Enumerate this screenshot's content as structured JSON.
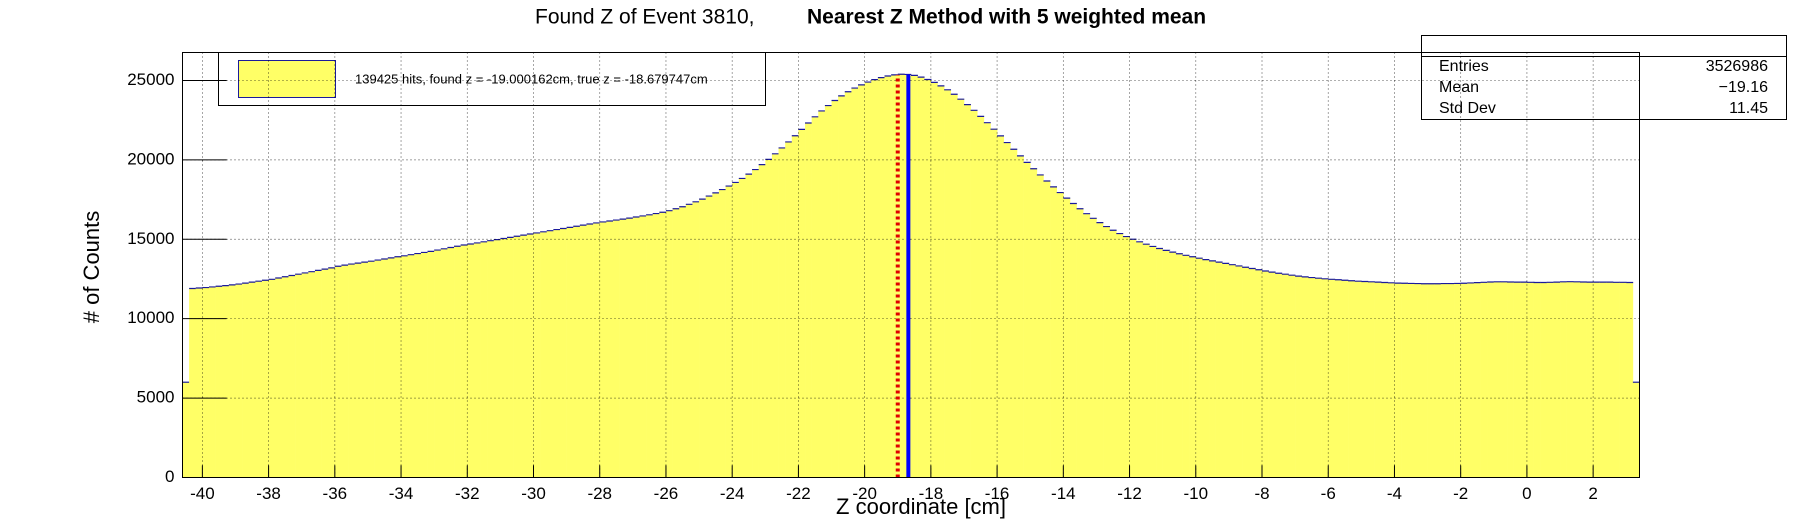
{
  "chart_data": {
    "type": "histogram",
    "title": "Found Z of Event 3810,",
    "subtitle": "Nearest Z Method with 5 weighted mean",
    "x_label": "Z coordinate [cm]",
    "y_label": "# of Counts",
    "legend_text": "139425 hits, found z = -19.000162cm, true z = -18.679747cm",
    "color": "#ffff66",
    "edge_color": "#1a1a9c",
    "grid": true,
    "xlim": [
      -40.6,
      3.4
    ],
    "ylim": [
      0,
      26760
    ],
    "xticks": [
      -40,
      -38,
      -36,
      -34,
      -32,
      -30,
      -28,
      -26,
      -24,
      -22,
      -20,
      -18,
      -16,
      -14,
      -12,
      -10,
      -8,
      -6,
      -4,
      -2,
      0,
      2
    ],
    "yticks": [
      0,
      5000,
      10000,
      15000,
      20000,
      25000
    ],
    "lines": [
      {
        "x": -19.000162,
        "color": "#e00000",
        "style": "dotted"
      },
      {
        "x": -18.679747,
        "color": "#0000ff",
        "style": "solid"
      }
    ],
    "stats": [
      {
        "label": "Entries",
        "value": "3526986"
      },
      {
        "label": "Mean",
        "value": "−19.16"
      },
      {
        "label": "Std Dev",
        "value": "11.45"
      }
    ],
    "bins": [
      -40.6,
      -40.4,
      -40.2,
      -40,
      -39.8,
      -39.6,
      -39.4,
      -39.2,
      -39,
      -38.8,
      -38.6,
      -38.4,
      -38.2,
      -38,
      -37.8,
      -37.6,
      -37.4,
      -37.2,
      -37,
      -36.8,
      -36.6,
      -36.4,
      -36.2,
      -36,
      -35.8,
      -35.6,
      -35.4,
      -35.2,
      -35,
      -34.8,
      -34.6,
      -34.4,
      -34.2,
      -34,
      -33.8,
      -33.6,
      -33.4,
      -33.2,
      -33,
      -32.8,
      -32.6,
      -32.4,
      -32.2,
      -32,
      -31.8,
      -31.6,
      -31.4,
      -31.2,
      -31,
      -30.8,
      -30.6,
      -30.4,
      -30.2,
      -30,
      -29.8,
      -29.6,
      -29.4,
      -29.2,
      -29,
      -28.8,
      -28.6,
      -28.4,
      -28.2,
      -28,
      -27.8,
      -27.6,
      -27.4,
      -27.2,
      -27,
      -26.8,
      -26.6,
      -26.4,
      -26.2,
      -26,
      -25.8,
      -25.6,
      -25.4,
      -25.2,
      -25,
      -24.8,
      -24.6,
      -24.4,
      -24.2,
      -24,
      -23.8,
      -23.6,
      -23.4,
      -23.2,
      -23,
      -22.8,
      -22.6,
      -22.4,
      -22.2,
      -22,
      -21.8,
      -21.6,
      -21.4,
      -21.2,
      -21,
      -20.8,
      -20.6,
      -20.4,
      -20.2,
      -20,
      -19.8,
      -19.6,
      -19.4,
      -19.2,
      -19,
      -18.8,
      -18.6,
      -18.4,
      -18.2,
      -18,
      -17.8,
      -17.6,
      -17.4,
      -17.2,
      -17,
      -16.8,
      -16.6,
      -16.4,
      -16.2,
      -16,
      -15.8,
      -15.6,
      -15.4,
      -15.2,
      -15,
      -14.8,
      -14.6,
      -14.4,
      -14.2,
      -14,
      -13.8,
      -13.6,
      -13.4,
      -13.2,
      -13,
      -12.8,
      -12.6,
      -12.4,
      -12.2,
      -12,
      -11.8,
      -11.6,
      -11.4,
      -11.2,
      -11,
      -10.8,
      -10.6,
      -10.4,
      -10.2,
      -10,
      -9.8,
      -9.6,
      -9.4,
      -9.2,
      -9,
      -8.8,
      -8.6,
      -8.4,
      -8.2,
      -8,
      -7.8,
      -7.6,
      -7.4,
      -7.2,
      -7,
      -6.8,
      -6.6,
      -6.4,
      -6.2,
      -6,
      -5.8,
      -5.6,
      -5.4,
      -5.2,
      -5,
      -4.8,
      -4.6,
      -4.4,
      -4.2,
      -4,
      -3.8,
      -3.6,
      -3.4,
      -3.2,
      -3,
      -2.8,
      -2.6,
      -2.4,
      -2.2,
      -2,
      -1.8,
      -1.6,
      -1.4,
      -1.2,
      -1,
      -0.8,
      -0.6,
      -0.4,
      -0.2,
      0,
      0.2,
      0.4,
      0.6,
      0.8,
      1,
      1.2,
      1.4,
      1.6,
      1.8,
      2,
      2.2,
      2.4,
      2.6,
      2.8,
      3,
      3.2,
      3.4
    ],
    "values": [
      6000,
      11900,
      11930,
      11960,
      12000,
      12040,
      12080,
      12130,
      12180,
      12240,
      12300,
      12360,
      12420,
      12480,
      12560,
      12640,
      12720,
      12800,
      12880,
      12960,
      13040,
      13120,
      13200,
      13300,
      13370,
      13440,
      13500,
      13560,
      13620,
      13690,
      13760,
      13830,
      13900,
      13960,
      14030,
      14100,
      14170,
      14240,
      14320,
      14400,
      14480,
      14560,
      14640,
      14700,
      14770,
      14840,
      14910,
      14980,
      15050,
      15120,
      15190,
      15260,
      15330,
      15400,
      15470,
      15540,
      15610,
      15680,
      15750,
      15820,
      15890,
      15960,
      16030,
      16090,
      16150,
      16210,
      16270,
      16330,
      16400,
      16470,
      16540,
      16620,
      16700,
      16800,
      16920,
      17050,
      17200,
      17360,
      17530,
      17720,
      17920,
      18130,
      18350,
      18580,
      18830,
      19100,
      19390,
      19700,
      20030,
      20380,
      20750,
      21130,
      21520,
      21920,
      22320,
      22710,
      23080,
      23420,
      23740,
      24030,
      24290,
      24520,
      24720,
      24900,
      25050,
      25180,
      25280,
      25350,
      25390,
      25380,
      25320,
      25210,
      25060,
      24880,
      24660,
      24410,
      24130,
      23820,
      23480,
      23120,
      22740,
      22340,
      21930,
      21510,
      21090,
      20670,
      20250,
      19840,
      19440,
      19050,
      18670,
      18300,
      17940,
      17590,
      17250,
      16920,
      16610,
      16320,
      16050,
      15800,
      15570,
      15360,
      15170,
      15000,
      14840,
      14690,
      14550,
      14420,
      14300,
      14190,
      14090,
      13990,
      13900,
      13810,
      13720,
      13640,
      13560,
      13480,
      13400,
      13320,
      13240,
      13160,
      13080,
      13000,
      12930,
      12860,
      12800,
      12740,
      12680,
      12630,
      12590,
      12550,
      12510,
      12480,
      12450,
      12420,
      12390,
      12360,
      12340,
      12320,
      12300,
      12280,
      12260,
      12240,
      12230,
      12220,
      12210,
      12200,
      12200,
      12200,
      12210,
      12210,
      12220,
      12230,
      12250,
      12270,
      12290,
      12310,
      12320,
      12320,
      12310,
      12300,
      12300,
      12290,
      12280,
      12280,
      12290,
      12300,
      12320,
      12330,
      12320,
      12310,
      12300,
      12300,
      12300,
      12300,
      12290,
      12290,
      12280,
      6000
    ]
  }
}
